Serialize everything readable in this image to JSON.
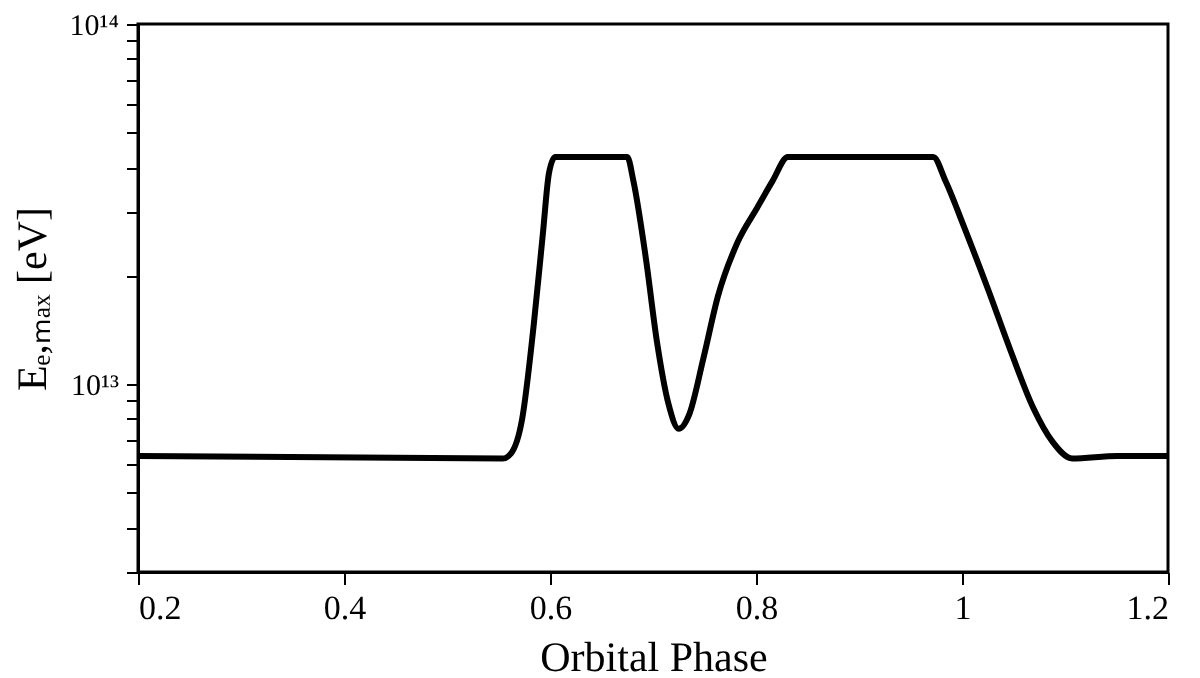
{
  "chart_data": {
    "type": "line",
    "xlabel": "Orbital Phase",
    "ylabel": "Eₑ,ₘₐₓ [eV]",
    "log": "y",
    "xlim": [
      0.2,
      1.2
    ],
    "xticks": [
      0.2,
      0.4,
      0.6,
      0.8,
      1,
      1.2
    ],
    "ylim": [
      3000000000000.0,
      100000000000000.0
    ],
    "yticks": [
      {
        "value": 3000000000000.0,
        "label": null
      },
      {
        "value": 4000000000000.0,
        "label": null
      },
      {
        "value": 5000000000000.0,
        "label": null
      },
      {
        "value": 6000000000000.0,
        "label": null
      },
      {
        "value": 7000000000000.0,
        "label": null
      },
      {
        "value": 8000000000000.0,
        "label": null
      },
      {
        "value": 9000000000000.0,
        "label": null
      },
      {
        "value": 10000000000000.0,
        "label": "10¹³"
      },
      {
        "value": 20000000000000.0,
        "label": null
      },
      {
        "value": 30000000000000.0,
        "label": null
      },
      {
        "value": 40000000000000.0,
        "label": null
      },
      {
        "value": 50000000000000.0,
        "label": null
      },
      {
        "value": 60000000000000.0,
        "label": null
      },
      {
        "value": 70000000000000.0,
        "label": null
      },
      {
        "value": 80000000000000.0,
        "label": null
      },
      {
        "value": 90000000000000.0,
        "label": null
      },
      {
        "value": 100000000000000.0,
        "label": "10¹⁴"
      }
    ],
    "grid": false,
    "legend": false,
    "marker": "none",
    "line_style": "solid",
    "series": [
      {
        "color": "#000000",
        "x": [
          0.2,
          0.554,
          0.562,
          0.573,
          0.584,
          0.593,
          0.599,
          0.605,
          0.675,
          0.681,
          0.693,
          0.704,
          0.715,
          0.725,
          0.735,
          0.749,
          0.763,
          0.782,
          0.801,
          0.816,
          0.831,
          0.972,
          0.984,
          1.002,
          1.025,
          1.047,
          1.069,
          1.088,
          1.107,
          1.151,
          1.2
        ],
        "values": [
          6300000000000.0,
          6200000000000.0,
          6400000000000.0,
          8000000000000.0,
          14400000000000.0,
          26000000000000.0,
          38500000000000.0,
          42700000000000.0,
          42700000000000.0,
          36600000000000.0,
          22400000000000.0,
          13000000000000.0,
          8800000000000.0,
          7500000000000.0,
          8200000000000.0,
          11800000000000.0,
          17500000000000.0,
          24700000000000.0,
          30800000000000.0,
          36600000000000.0,
          42700000000000.0,
          42700000000000.0,
          36600000000000.0,
          27300000000000.0,
          18400000000000.0,
          12400000000000.0,
          8600000000000.0,
          6900000000000.0,
          6200000000000.0,
          6300000000000.0,
          6300000000000.0
        ]
      }
    ]
  }
}
